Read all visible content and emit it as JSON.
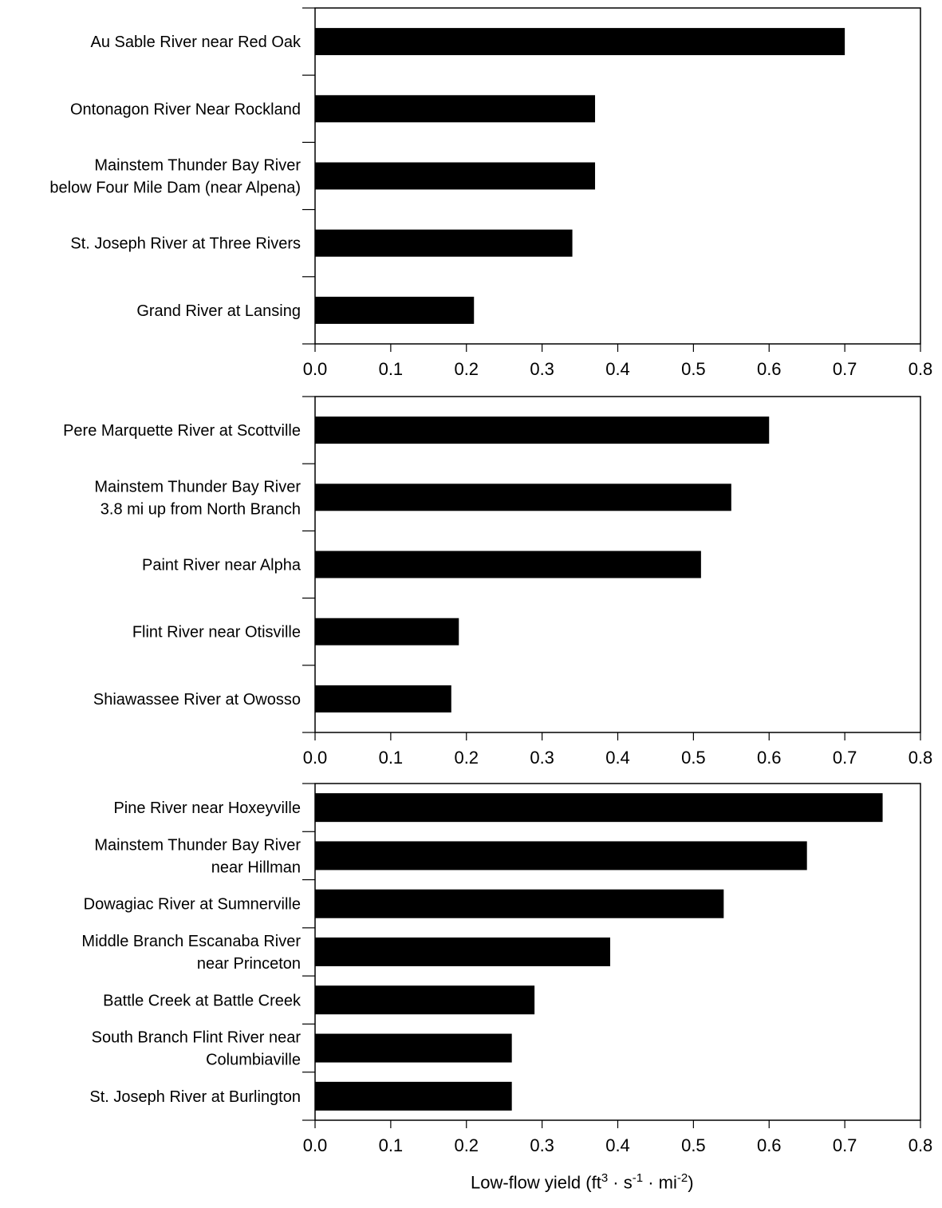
{
  "chart_data": [
    {
      "type": "bar",
      "orientation": "horizontal",
      "categories": [
        "Au Sable River near Red Oak",
        "Ontonagon River Near Rockland",
        "Mainstem Thunder Bay River\nbelow Four Mile Dam (near Alpena)",
        "St. Joseph River at Three Rivers",
        "Grand River at Lansing"
      ],
      "values": [
        0.7,
        0.37,
        0.37,
        0.34,
        0.21
      ],
      "xlim": [
        0,
        0.8
      ],
      "xticks": [
        "0.0",
        "0.1",
        "0.2",
        "0.3",
        "0.4",
        "0.5",
        "0.6",
        "0.7",
        "0.8"
      ],
      "bar_color": "#000000",
      "grid": false
    },
    {
      "type": "bar",
      "orientation": "horizontal",
      "categories": [
        "Pere Marquette River at Scottville",
        "Mainstem Thunder Bay River\n3.8 mi up from North Branch",
        "Paint River near Alpha",
        "Flint River near Otisville",
        "Shiawassee River at Owosso"
      ],
      "values": [
        0.6,
        0.55,
        0.51,
        0.19,
        0.18
      ],
      "xlim": [
        0,
        0.8
      ],
      "xticks": [
        "0.0",
        "0.1",
        "0.2",
        "0.3",
        "0.4",
        "0.5",
        "0.6",
        "0.7",
        "0.8"
      ],
      "bar_color": "#000000",
      "grid": false
    },
    {
      "type": "bar",
      "orientation": "horizontal",
      "categories": [
        "Pine River near Hoxeyville",
        "Mainstem Thunder Bay River\nnear Hillman",
        "Dowagiac River at Sumnerville",
        "Middle Branch Escanaba River\nnear Princeton",
        "Battle Creek at Battle Creek",
        "South Branch Flint River near\nColumbiaville",
        "St. Joseph River at Burlington"
      ],
      "values": [
        0.75,
        0.65,
        0.54,
        0.39,
        0.29,
        0.26,
        0.26
      ],
      "xlim": [
        0,
        0.8
      ],
      "xticks": [
        "0.0",
        "0.1",
        "0.2",
        "0.3",
        "0.4",
        "0.5",
        "0.6",
        "0.7",
        "0.8"
      ],
      "bar_color": "#000000",
      "grid": false
    }
  ],
  "xlabel": {
    "prefix": "Low-flow yield (ft",
    "sup1": "3",
    "mid1": " · s",
    "sup2": "-1",
    "mid2": " · mi",
    "sup3": "-2",
    "suffix": ")"
  }
}
